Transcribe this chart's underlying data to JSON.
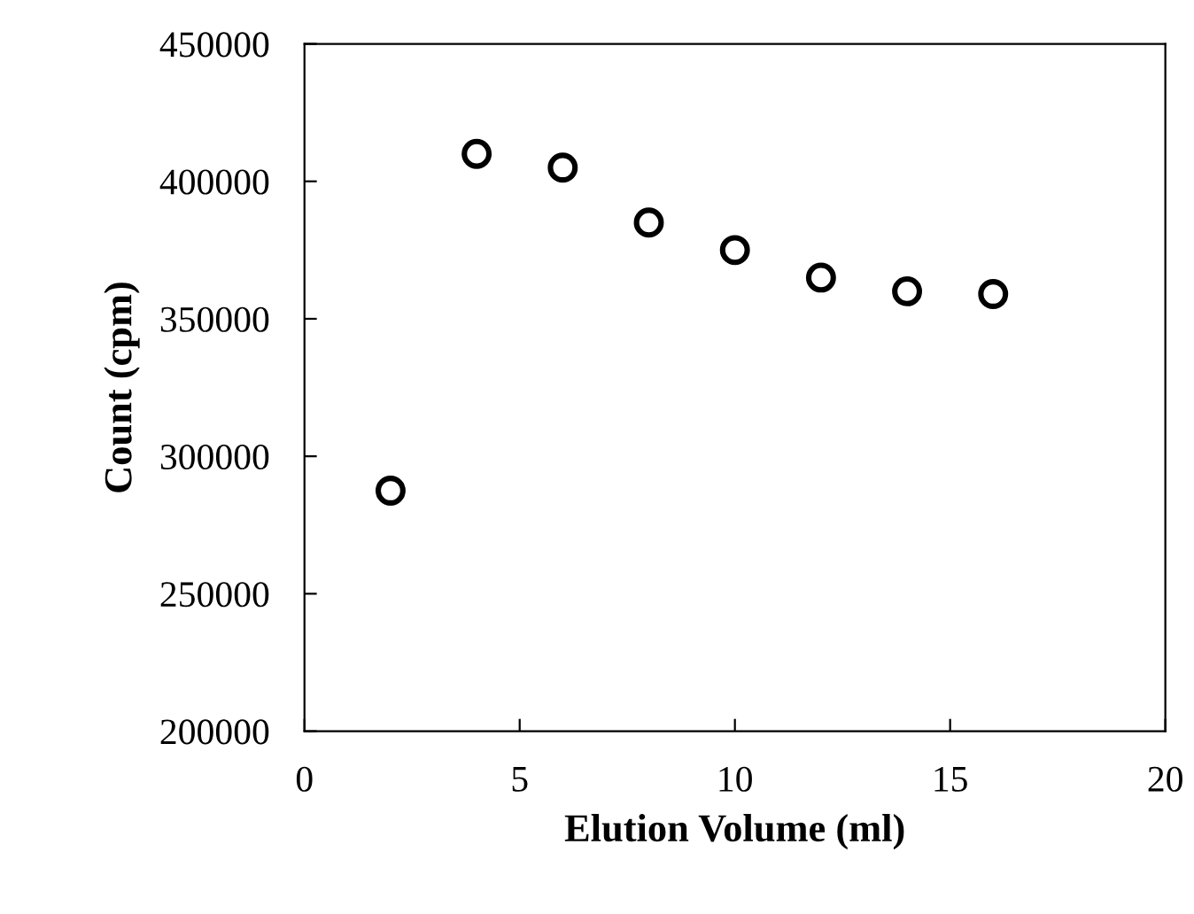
{
  "chart_data": {
    "type": "scatter",
    "xlabel": "Elution Volume (ml)",
    "ylabel": "Count (cpm)",
    "x": [
      2,
      4,
      6,
      8,
      10,
      12,
      14,
      16
    ],
    "series": [
      {
        "color": "#000000",
        "values": [
          287500,
          410000,
          405000,
          385000,
          375000,
          365000,
          360000,
          359000
        ]
      }
    ],
    "xlim": [
      0,
      20
    ],
    "xticks": [
      0,
      5,
      10,
      15,
      20
    ],
    "ylim": [
      200000,
      450000
    ],
    "yticks": [
      200000,
      250000,
      300000,
      350000,
      400000,
      450000
    ],
    "marker": "circle",
    "grid": false,
    "legend": false
  }
}
